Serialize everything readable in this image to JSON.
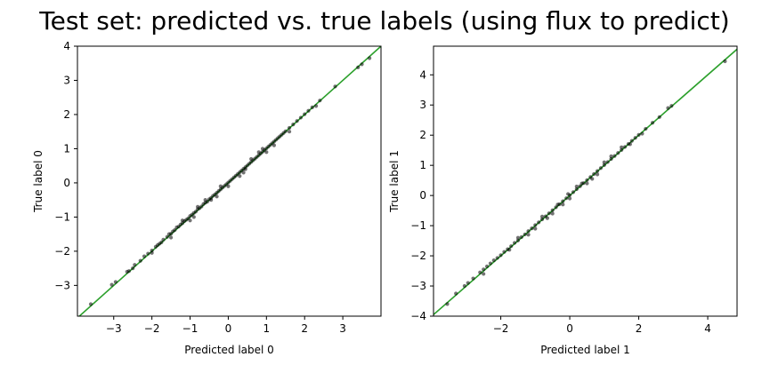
{
  "figure": {
    "title": "Test set: predicted vs. true labels (using flux to predict)"
  },
  "chart_data": [
    {
      "type": "scatter",
      "xlabel": "Predicted label 0",
      "ylabel": "True label 0",
      "xlim": [
        -3.95,
        4.0
      ],
      "ylim": [
        -3.9,
        4.0
      ],
      "xticks": [
        -3,
        -2,
        -1,
        0,
        1,
        2,
        3
      ],
      "yticks": [
        -3,
        -2,
        -1,
        0,
        1,
        2,
        3,
        4
      ],
      "x_tick_labels": [
        "−3",
        "−2",
        "−1",
        "0",
        "1",
        "2",
        "3"
      ],
      "y_tick_labels": [
        "−3",
        "−2",
        "−1",
        "0",
        "1",
        "2",
        "3",
        "4"
      ],
      "grid": false,
      "reference_line": {
        "x": [
          -3.95,
          4.0
        ],
        "y": [
          -3.95,
          4.0
        ],
        "color": "#2ca02c"
      },
      "marker_color": "#000000",
      "points": [
        [
          -3.6,
          -3.55
        ],
        [
          -3.05,
          -2.98
        ],
        [
          -2.95,
          -2.9
        ],
        [
          -2.65,
          -2.6
        ],
        [
          -2.6,
          -2.58
        ],
        [
          -2.5,
          -2.5
        ],
        [
          -2.45,
          -2.4
        ],
        [
          -2.3,
          -2.28
        ],
        [
          -2.2,
          -2.15
        ],
        [
          -2.1,
          -2.07
        ],
        [
          -2.0,
          -1.98
        ],
        [
          -1.9,
          -1.87
        ],
        [
          -1.85,
          -1.82
        ],
        [
          -1.8,
          -1.78
        ],
        [
          -1.75,
          -1.74
        ],
        [
          -1.7,
          -1.66
        ],
        [
          -1.6,
          -1.58
        ],
        [
          -1.55,
          -1.5
        ],
        [
          -1.5,
          -1.49
        ],
        [
          -1.45,
          -1.42
        ],
        [
          -1.4,
          -1.38
        ],
        [
          -1.35,
          -1.3
        ],
        [
          -1.3,
          -1.28
        ],
        [
          -1.25,
          -1.22
        ],
        [
          -1.2,
          -1.18
        ],
        [
          -1.15,
          -1.12
        ],
        [
          -1.1,
          -1.08
        ],
        [
          -1.05,
          -1.04
        ],
        [
          -1.0,
          -0.97
        ],
        [
          -0.95,
          -0.93
        ],
        [
          -0.9,
          -0.88
        ],
        [
          -0.85,
          -0.84
        ],
        [
          -0.8,
          -0.77
        ],
        [
          -0.75,
          -0.74
        ],
        [
          -0.7,
          -0.69
        ],
        [
          -0.65,
          -0.62
        ],
        [
          -0.6,
          -0.58
        ],
        [
          -0.55,
          -0.55
        ],
        [
          -0.5,
          -0.48
        ],
        [
          -0.45,
          -0.44
        ],
        [
          -0.4,
          -0.38
        ],
        [
          -0.35,
          -0.34
        ],
        [
          -0.3,
          -0.29
        ],
        [
          -0.25,
          -0.24
        ],
        [
          -0.2,
          -0.19
        ],
        [
          -0.15,
          -0.14
        ],
        [
          -0.1,
          -0.09
        ],
        [
          -0.05,
          -0.04
        ],
        [
          0.0,
          0.01
        ],
        [
          0.05,
          0.06
        ],
        [
          0.1,
          0.11
        ],
        [
          0.15,
          0.16
        ],
        [
          0.2,
          0.21
        ],
        [
          0.25,
          0.26
        ],
        [
          0.3,
          0.31
        ],
        [
          0.35,
          0.36
        ],
        [
          0.4,
          0.41
        ],
        [
          0.45,
          0.46
        ],
        [
          0.5,
          0.51
        ],
        [
          0.55,
          0.56
        ],
        [
          0.6,
          0.61
        ],
        [
          0.65,
          0.66
        ],
        [
          0.7,
          0.71
        ],
        [
          0.75,
          0.76
        ],
        [
          0.8,
          0.81
        ],
        [
          0.85,
          0.86
        ],
        [
          0.9,
          0.91
        ],
        [
          0.95,
          0.96
        ],
        [
          1.0,
          1.01
        ],
        [
          1.05,
          1.06
        ],
        [
          1.1,
          1.11
        ],
        [
          1.15,
          1.16
        ],
        [
          1.2,
          1.21
        ],
        [
          1.25,
          1.26
        ],
        [
          1.3,
          1.31
        ],
        [
          1.35,
          1.36
        ],
        [
          1.4,
          1.41
        ],
        [
          1.45,
          1.46
        ],
        [
          1.5,
          1.51
        ],
        [
          1.6,
          1.61
        ],
        [
          1.7,
          1.71
        ],
        [
          1.8,
          1.81
        ],
        [
          1.9,
          1.91
        ],
        [
          2.0,
          2.01
        ],
        [
          2.1,
          2.11
        ],
        [
          2.2,
          2.21
        ],
        [
          2.4,
          2.41
        ],
        [
          2.8,
          2.82
        ],
        [
          3.4,
          3.38
        ],
        [
          3.5,
          3.47
        ],
        [
          3.7,
          3.65
        ],
        [
          -1.2,
          -1.1
        ],
        [
          -0.9,
          -1.0
        ],
        [
          -0.3,
          -0.4
        ],
        [
          0.3,
          0.2
        ],
        [
          0.6,
          0.7
        ],
        [
          1.2,
          1.1
        ],
        [
          -0.6,
          -0.5
        ],
        [
          0.0,
          -0.1
        ],
        [
          0.9,
          1.0
        ],
        [
          -1.5,
          -1.6
        ],
        [
          1.6,
          1.5
        ],
        [
          -0.2,
          -0.1
        ],
        [
          0.4,
          0.3
        ],
        [
          -2.0,
          -2.05
        ],
        [
          2.3,
          2.25
        ],
        [
          -1.0,
          -1.1
        ],
        [
          1.0,
          0.9
        ],
        [
          -0.8,
          -0.7
        ],
        [
          0.8,
          0.9
        ],
        [
          -0.45,
          -0.5
        ],
        [
          0.45,
          0.4
        ]
      ]
    },
    {
      "type": "scatter",
      "xlabel": "Predicted label 1",
      "ylabel": "True label 1",
      "xlim": [
        -3.95,
        4.85
      ],
      "ylim": [
        -4.0,
        4.95
      ],
      "xticks": [
        -2,
        0,
        2,
        4
      ],
      "yticks": [
        -4,
        -3,
        -2,
        -1,
        0,
        1,
        2,
        3,
        4
      ],
      "x_tick_labels": [
        "−2",
        "0",
        "2",
        "4"
      ],
      "y_tick_labels": [
        "−4",
        "−3",
        "−2",
        "−1",
        "0",
        "1",
        "2",
        "3",
        "4"
      ],
      "grid": false,
      "reference_line": {
        "x": [
          -3.95,
          4.85
        ],
        "y": [
          -3.95,
          4.85
        ],
        "color": "#2ca02c"
      },
      "marker_color": "#000000",
      "points": [
        [
          -3.55,
          -3.6
        ],
        [
          -3.3,
          -3.25
        ],
        [
          -3.05,
          -3.0
        ],
        [
          -2.95,
          -2.9
        ],
        [
          -2.8,
          -2.75
        ],
        [
          -2.6,
          -2.55
        ],
        [
          -2.5,
          -2.45
        ],
        [
          -2.4,
          -2.35
        ],
        [
          -2.2,
          -2.15
        ],
        [
          -2.1,
          -2.07
        ],
        [
          -2.0,
          -1.98
        ],
        [
          -1.9,
          -1.87
        ],
        [
          -1.8,
          -1.78
        ],
        [
          -1.7,
          -1.68
        ],
        [
          -1.6,
          -1.57
        ],
        [
          -1.5,
          -1.49
        ],
        [
          -1.4,
          -1.38
        ],
        [
          -1.3,
          -1.29
        ],
        [
          -1.2,
          -1.18
        ],
        [
          -1.1,
          -1.09
        ],
        [
          -1.0,
          -0.98
        ],
        [
          -0.9,
          -0.89
        ],
        [
          -0.8,
          -0.79
        ],
        [
          -0.7,
          -0.69
        ],
        [
          -0.6,
          -0.59
        ],
        [
          -0.5,
          -0.49
        ],
        [
          -0.4,
          -0.39
        ],
        [
          -0.3,
          -0.29
        ],
        [
          -0.2,
          -0.19
        ],
        [
          -0.1,
          -0.09
        ],
        [
          0.0,
          0.01
        ],
        [
          0.1,
          0.11
        ],
        [
          0.2,
          0.21
        ],
        [
          0.3,
          0.31
        ],
        [
          0.4,
          0.41
        ],
        [
          0.5,
          0.51
        ],
        [
          0.6,
          0.61
        ],
        [
          0.7,
          0.71
        ],
        [
          0.8,
          0.81
        ],
        [
          0.9,
          0.91
        ],
        [
          1.0,
          1.01
        ],
        [
          1.1,
          1.11
        ],
        [
          1.2,
          1.21
        ],
        [
          1.3,
          1.31
        ],
        [
          1.4,
          1.41
        ],
        [
          1.5,
          1.51
        ],
        [
          1.6,
          1.61
        ],
        [
          1.7,
          1.71
        ],
        [
          1.8,
          1.81
        ],
        [
          1.9,
          1.91
        ],
        [
          2.0,
          2.01
        ],
        [
          2.2,
          2.21
        ],
        [
          2.4,
          2.41
        ],
        [
          2.6,
          2.6
        ],
        [
          2.85,
          2.9
        ],
        [
          2.95,
          2.97
        ],
        [
          4.5,
          4.45
        ],
        [
          -1.0,
          -1.1
        ],
        [
          -0.5,
          -0.6
        ],
        [
          0.5,
          0.4
        ],
        [
          1.0,
          1.1
        ],
        [
          -1.5,
          -1.4
        ],
        [
          1.5,
          1.6
        ],
        [
          -0.2,
          -0.3
        ],
        [
          0.2,
          0.3
        ],
        [
          -2.5,
          -2.6
        ],
        [
          -0.8,
          -0.7
        ],
        [
          0.8,
          0.7
        ],
        [
          -1.2,
          -1.3
        ],
        [
          1.2,
          1.3
        ],
        [
          0.0,
          -0.1
        ],
        [
          -0.05,
          0.05
        ],
        [
          -1.75,
          -1.8
        ],
        [
          1.75,
          1.7
        ],
        [
          -0.35,
          -0.3
        ],
        [
          0.35,
          0.4
        ],
        [
          -0.65,
          -0.75
        ],
        [
          0.65,
          0.55
        ],
        [
          -2.3,
          -2.25
        ],
        [
          2.1,
          2.05
        ]
      ]
    }
  ]
}
